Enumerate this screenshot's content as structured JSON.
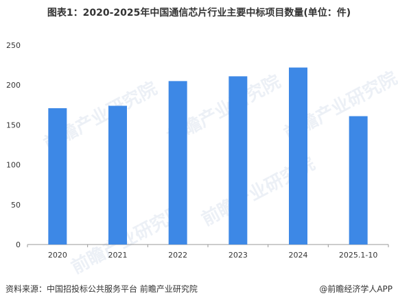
{
  "title": "图表1：2020-2025年中国通信芯片行业主要中标项目数量(单位：件)",
  "source": "资料来源：中国招投标公共服务平台 前瞻产业研究院",
  "brand": "@前瞻经济学人APP",
  "watermark": "前瞻产业研究院",
  "colors": {
    "bar": "#3d88e6",
    "axis": "#999999",
    "text": "#333333"
  },
  "chart_data": {
    "type": "bar",
    "title": "图表1：2020-2025年中国通信芯片行业主要中标项目数量(单位：件)",
    "categories": [
      "2020",
      "2021",
      "2022",
      "2023",
      "2024",
      "2025.1-10"
    ],
    "values": [
      171,
      174,
      205,
      211,
      222,
      161
    ],
    "ylim": [
      0,
      250
    ],
    "yticks": [
      0,
      50,
      100,
      150,
      200,
      250
    ],
    "grid": false,
    "legend": "none"
  }
}
